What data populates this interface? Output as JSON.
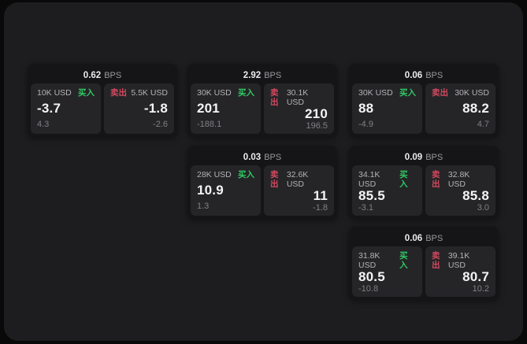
{
  "units": {
    "bps": "BPS"
  },
  "labels": {
    "buy": "买入",
    "sell": "卖出"
  },
  "colors": {
    "page_bg": "#09090a",
    "panel_bg": "#1d1d1f",
    "card_bg": "#151517",
    "subcard_bg": "#252528",
    "buy_green": "#30c964",
    "sell_red": "#d2495e",
    "value_white": "#f4f4f5",
    "muted_gray": "#808084"
  },
  "cards": [
    {
      "bps": "0.62",
      "buy": {
        "amount": "10K USD",
        "value": "-3.7",
        "delta": "4.3"
      },
      "sell": {
        "amount": "5.5K USD",
        "value": "-1.8",
        "delta": "-2.6"
      }
    },
    {
      "bps": "2.92",
      "buy": {
        "amount": "30K USD",
        "value": "201",
        "delta": "-188.1"
      },
      "sell": {
        "amount": "30.1K USD",
        "value": "210",
        "delta": "196.5"
      }
    },
    {
      "bps": "0.06",
      "buy": {
        "amount": "30K USD",
        "value": "88",
        "delta": "-4.9"
      },
      "sell": {
        "amount": "30K USD",
        "value": "88.2",
        "delta": "4.7"
      }
    },
    {
      "bps": "0.03",
      "buy": {
        "amount": "28K USD",
        "value": "10.9",
        "delta": "1.3"
      },
      "sell": {
        "amount": "32.6K USD",
        "value": "11",
        "delta": "-1.8"
      }
    },
    {
      "bps": "0.09",
      "buy": {
        "amount": "34.1K USD",
        "value": "85.5",
        "delta": "-3.1"
      },
      "sell": {
        "amount": "32.8K USD",
        "value": "85.8",
        "delta": "3.0"
      }
    },
    {
      "bps": "0.06",
      "buy": {
        "amount": "31.8K USD",
        "value": "80.5",
        "delta": "-10.8"
      },
      "sell": {
        "amount": "39.1K USD",
        "value": "80.7",
        "delta": "10.2"
      }
    }
  ]
}
